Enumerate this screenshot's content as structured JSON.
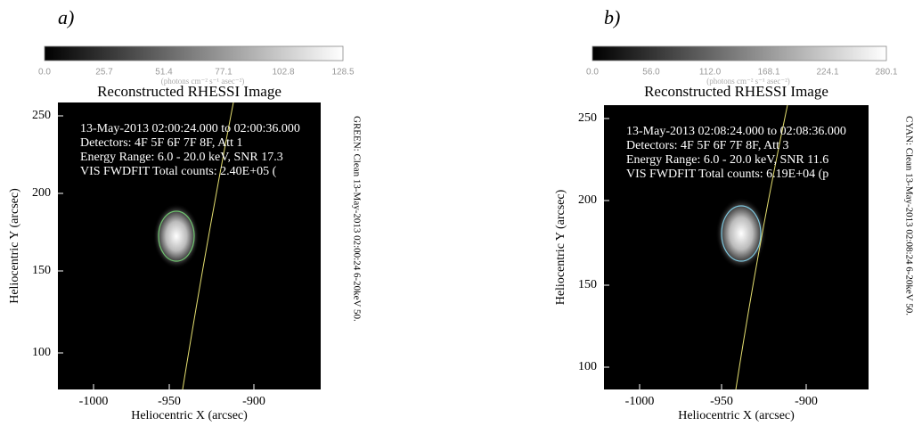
{
  "panels": [
    {
      "label": "a)",
      "colorbar": {
        "ticks": [
          "0.0",
          "25.7",
          "51.4",
          "77.1",
          "102.8",
          "128.5"
        ],
        "units": "(photons cm⁻² s⁻¹ asec⁻²)"
      },
      "title": "Reconstructed RHESSI Image",
      "annotation": [
        "13-May-2013 02:00:24.000 to 02:00:36.000",
        "Detectors: 4F 5F 6F 7F 8F, Att 1",
        "Energy Range: 6.0 - 20.0 keV, SNR 17.3",
        "VIS FWDFIT    Total counts: 2.40E+05    ("
      ],
      "yticks": [
        "250",
        "200",
        "150",
        "100"
      ],
      "xticks": [
        "-1000",
        "-950",
        "-900"
      ],
      "ylabel": "Heliocentric Y (arcsec)",
      "xlabel": "Heliocentric X (arcsec)",
      "side_text": "GREEN: Clean 13-May-2013 02:00:24 6-20keV 50."
    },
    {
      "label": "b)",
      "colorbar": {
        "ticks": [
          "0.0",
          "56.0",
          "112.0",
          "168.1",
          "224.1",
          "280.1"
        ],
        "units": "(photons cm⁻² s⁻¹ asec⁻²)"
      },
      "title": "Reconstructed RHESSI Image",
      "annotation": [
        "13-May-2013 02:08:24.000 to 02:08:36.000",
        "Detectors: 4F 5F 6F 7F 8F, Att 3",
        "Energy Range: 6.0 - 20.0 keV, SNR 11.6",
        "VIS FWDFIT    Total counts: 6.19E+04    (p"
      ],
      "yticks": [
        "250",
        "200",
        "150",
        "100"
      ],
      "xticks": [
        "-1000",
        "-950",
        "-900"
      ],
      "ylabel": "Heliocentric Y (arcsec)",
      "xlabel": "Heliocentric X (arcsec)",
      "side_text": "CYAN: Clean 13-May-2013 02:08:24 6-20keV 50."
    }
  ]
}
